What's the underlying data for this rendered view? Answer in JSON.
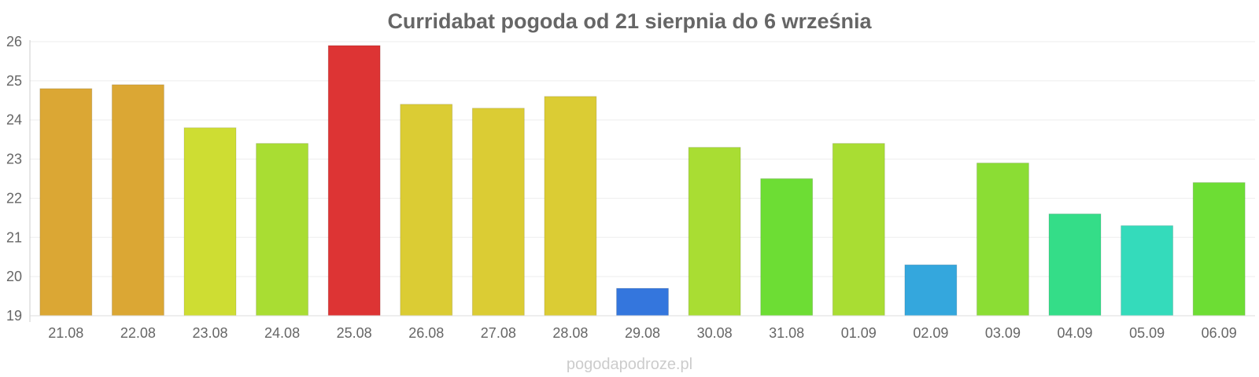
{
  "chart_data": {
    "type": "bar",
    "title": "Curridabat pogoda od 21 sierpnia do 6 września",
    "xlabel": "",
    "ylabel": "",
    "ylim": [
      19,
      26
    ],
    "yticks": [
      "19",
      "20",
      "21",
      "22",
      "23",
      "24",
      "25",
      "26"
    ],
    "grid": true,
    "categories": [
      "21.08",
      "22.08",
      "23.08",
      "24.08",
      "25.08",
      "26.08",
      "27.08",
      "28.08",
      "29.08",
      "30.08",
      "31.08",
      "01.09",
      "02.09",
      "03.09",
      "04.09",
      "05.09",
      "06.09"
    ],
    "values": [
      24.8,
      24.9,
      23.8,
      23.4,
      25.9,
      24.4,
      24.3,
      24.6,
      19.7,
      23.3,
      22.5,
      23.4,
      20.3,
      22.9,
      21.6,
      21.3,
      22.4
    ],
    "colors": [
      "#dba734",
      "#dba734",
      "#cedd33",
      "#a9dd33",
      "#dd3434",
      "#dbcc34",
      "#dbcc34",
      "#dbcc34",
      "#3476dd",
      "#a9dd33",
      "#6ddd34",
      "#a9dd33",
      "#34a7dd",
      "#8bdd34",
      "#34dd88",
      "#34dbbb",
      "#6ddd34"
    ]
  },
  "footer": "pogodapodroze.pl"
}
